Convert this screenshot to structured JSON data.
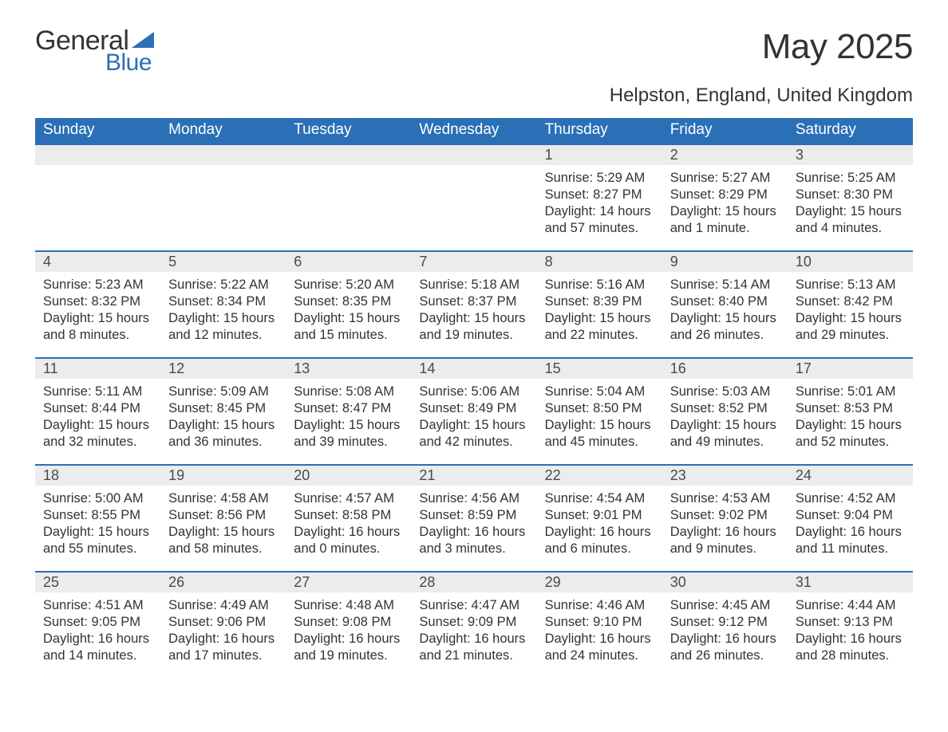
{
  "brand": {
    "word1": "General",
    "word2": "Blue",
    "accent_color": "#2b6fb6"
  },
  "title": "May 2025",
  "location": "Helpston, England, United Kingdom",
  "colors": {
    "header_bg": "#2b6fb6",
    "header_fg": "#ffffff",
    "daynum_bg": "#ececec",
    "text": "#333333",
    "border": "#2b6fb6"
  },
  "typography": {
    "title_fontsize": 44,
    "location_fontsize": 24,
    "weekday_fontsize": 19,
    "daynum_fontsize": 18,
    "body_fontsize": 16.5
  },
  "weekdays": [
    "Sunday",
    "Monday",
    "Tuesday",
    "Wednesday",
    "Thursday",
    "Friday",
    "Saturday"
  ],
  "weeks": [
    [
      null,
      null,
      null,
      null,
      {
        "day": "1",
        "sunrise": "5:29 AM",
        "sunset": "8:27 PM",
        "daylight": "14 hours and 57 minutes."
      },
      {
        "day": "2",
        "sunrise": "5:27 AM",
        "sunset": "8:29 PM",
        "daylight": "15 hours and 1 minute."
      },
      {
        "day": "3",
        "sunrise": "5:25 AM",
        "sunset": "8:30 PM",
        "daylight": "15 hours and 4 minutes."
      }
    ],
    [
      {
        "day": "4",
        "sunrise": "5:23 AM",
        "sunset": "8:32 PM",
        "daylight": "15 hours and 8 minutes."
      },
      {
        "day": "5",
        "sunrise": "5:22 AM",
        "sunset": "8:34 PM",
        "daylight": "15 hours and 12 minutes."
      },
      {
        "day": "6",
        "sunrise": "5:20 AM",
        "sunset": "8:35 PM",
        "daylight": "15 hours and 15 minutes."
      },
      {
        "day": "7",
        "sunrise": "5:18 AM",
        "sunset": "8:37 PM",
        "daylight": "15 hours and 19 minutes."
      },
      {
        "day": "8",
        "sunrise": "5:16 AM",
        "sunset": "8:39 PM",
        "daylight": "15 hours and 22 minutes."
      },
      {
        "day": "9",
        "sunrise": "5:14 AM",
        "sunset": "8:40 PM",
        "daylight": "15 hours and 26 minutes."
      },
      {
        "day": "10",
        "sunrise": "5:13 AM",
        "sunset": "8:42 PM",
        "daylight": "15 hours and 29 minutes."
      }
    ],
    [
      {
        "day": "11",
        "sunrise": "5:11 AM",
        "sunset": "8:44 PM",
        "daylight": "15 hours and 32 minutes."
      },
      {
        "day": "12",
        "sunrise": "5:09 AM",
        "sunset": "8:45 PM",
        "daylight": "15 hours and 36 minutes."
      },
      {
        "day": "13",
        "sunrise": "5:08 AM",
        "sunset": "8:47 PM",
        "daylight": "15 hours and 39 minutes."
      },
      {
        "day": "14",
        "sunrise": "5:06 AM",
        "sunset": "8:49 PM",
        "daylight": "15 hours and 42 minutes."
      },
      {
        "day": "15",
        "sunrise": "5:04 AM",
        "sunset": "8:50 PM",
        "daylight": "15 hours and 45 minutes."
      },
      {
        "day": "16",
        "sunrise": "5:03 AM",
        "sunset": "8:52 PM",
        "daylight": "15 hours and 49 minutes."
      },
      {
        "day": "17",
        "sunrise": "5:01 AM",
        "sunset": "8:53 PM",
        "daylight": "15 hours and 52 minutes."
      }
    ],
    [
      {
        "day": "18",
        "sunrise": "5:00 AM",
        "sunset": "8:55 PM",
        "daylight": "15 hours and 55 minutes."
      },
      {
        "day": "19",
        "sunrise": "4:58 AM",
        "sunset": "8:56 PM",
        "daylight": "15 hours and 58 minutes."
      },
      {
        "day": "20",
        "sunrise": "4:57 AM",
        "sunset": "8:58 PM",
        "daylight": "16 hours and 0 minutes."
      },
      {
        "day": "21",
        "sunrise": "4:56 AM",
        "sunset": "8:59 PM",
        "daylight": "16 hours and 3 minutes."
      },
      {
        "day": "22",
        "sunrise": "4:54 AM",
        "sunset": "9:01 PM",
        "daylight": "16 hours and 6 minutes."
      },
      {
        "day": "23",
        "sunrise": "4:53 AM",
        "sunset": "9:02 PM",
        "daylight": "16 hours and 9 minutes."
      },
      {
        "day": "24",
        "sunrise": "4:52 AM",
        "sunset": "9:04 PM",
        "daylight": "16 hours and 11 minutes."
      }
    ],
    [
      {
        "day": "25",
        "sunrise": "4:51 AM",
        "sunset": "9:05 PM",
        "daylight": "16 hours and 14 minutes."
      },
      {
        "day": "26",
        "sunrise": "4:49 AM",
        "sunset": "9:06 PM",
        "daylight": "16 hours and 17 minutes."
      },
      {
        "day": "27",
        "sunrise": "4:48 AM",
        "sunset": "9:08 PM",
        "daylight": "16 hours and 19 minutes."
      },
      {
        "day": "28",
        "sunrise": "4:47 AM",
        "sunset": "9:09 PM",
        "daylight": "16 hours and 21 minutes."
      },
      {
        "day": "29",
        "sunrise": "4:46 AM",
        "sunset": "9:10 PM",
        "daylight": "16 hours and 24 minutes."
      },
      {
        "day": "30",
        "sunrise": "4:45 AM",
        "sunset": "9:12 PM",
        "daylight": "16 hours and 26 minutes."
      },
      {
        "day": "31",
        "sunrise": "4:44 AM",
        "sunset": "9:13 PM",
        "daylight": "16 hours and 28 minutes."
      }
    ]
  ],
  "labels": {
    "sunrise": "Sunrise: ",
    "sunset": "Sunset: ",
    "daylight": "Daylight: "
  }
}
